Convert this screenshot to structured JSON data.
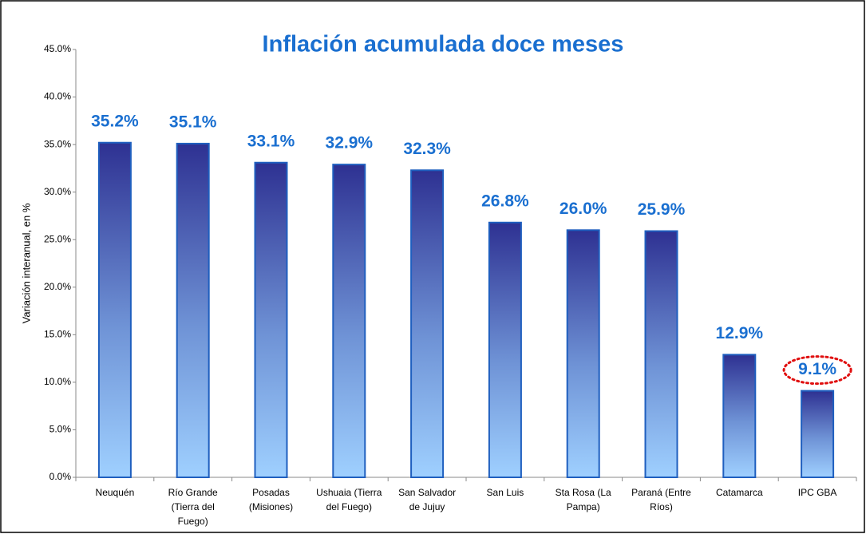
{
  "chart_data": {
    "type": "bar",
    "title": "Inflación acumulada doce meses",
    "y_label": "Variación interanual, en %",
    "categories": [
      "Neuquén",
      "Río Grande (Tierra del Fuego)",
      "Posadas (Misiones)",
      "Ushuaia (Tierra del Fuego)",
      "San Salvador de Jujuy",
      "San Luis",
      "Sta Rosa (La Pampa)",
      "Paraná (Entre Ríos)",
      "Catamarca",
      "IPC GBA"
    ],
    "values": [
      35.2,
      35.1,
      33.1,
      32.9,
      32.3,
      26.8,
      26.0,
      25.9,
      12.9,
      9.1
    ],
    "value_labels": [
      "35.2%",
      "35.1%",
      "33.1%",
      "32.9%",
      "32.3%",
      "26.8%",
      "26.0%",
      "25.9%",
      "12.9%",
      "9.1%"
    ],
    "color": "#2e3192",
    "ylim": [
      0,
      45
    ],
    "yticks": [
      {
        "value": 0,
        "label": "0.0%"
      },
      {
        "value": 5,
        "label": "5.0%"
      },
      {
        "value": 10,
        "label": "10.0%"
      },
      {
        "value": 15,
        "label": "15.0%"
      },
      {
        "value": 20,
        "label": "20.0%"
      },
      {
        "value": 25,
        "label": "25.0%"
      },
      {
        "value": 30,
        "label": "30.0%"
      },
      {
        "value": 35,
        "label": "35.0%"
      },
      {
        "value": 40,
        "label": "40.0%"
      },
      {
        "value": 45,
        "label": "45.0%"
      }
    ],
    "grid": false
  }
}
